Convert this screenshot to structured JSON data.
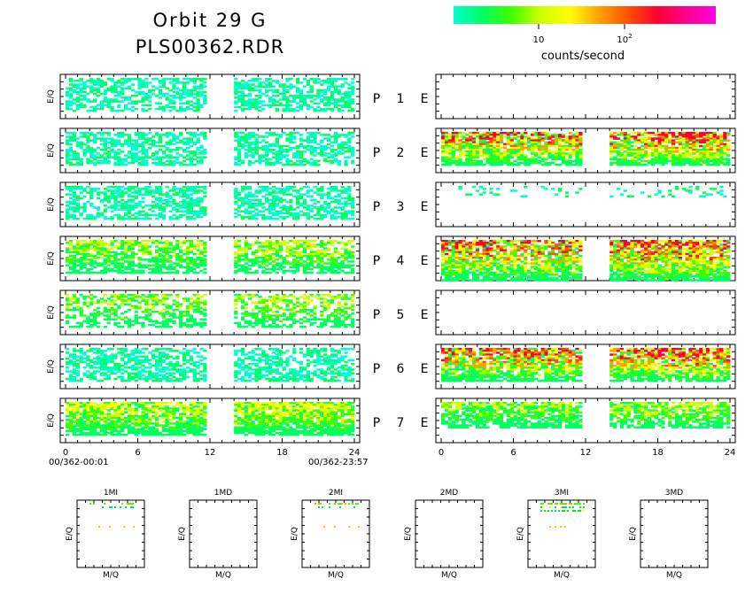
{
  "header": {
    "title": "Orbit 29 G",
    "file": "PLS00362.RDR"
  },
  "colorbar": {
    "colors": [
      "#00ffd0",
      "#00ff60",
      "#40ff00",
      "#d0ff00",
      "#ffff00",
      "#ffa000",
      "#ff5000",
      "#ff0030",
      "#ff0090",
      "#ff00e0"
    ],
    "tick_10": "10",
    "tick_100_base": "10",
    "tick_100_exp": "2",
    "label": "counts/second"
  },
  "axis": {
    "ylabel": "E/Q",
    "xlabel_small": "M/Q",
    "xticks": [
      "0",
      "6",
      "12",
      "18",
      "24"
    ],
    "start_time": "00/362-00:01",
    "end_time": "00/362-23:57"
  },
  "rows": [
    {
      "p": "P",
      "n": "1",
      "e": "E"
    },
    {
      "p": "P",
      "n": "2",
      "e": "E"
    },
    {
      "p": "P",
      "n": "3",
      "e": "E"
    },
    {
      "p": "P",
      "n": "4",
      "e": "E"
    },
    {
      "p": "P",
      "n": "5",
      "e": "E"
    },
    {
      "p": "P",
      "n": "6",
      "e": "E"
    },
    {
      "p": "P",
      "n": "7",
      "e": "E"
    }
  ],
  "small_titles": [
    "1MI",
    "1MD",
    "2MI",
    "2MD",
    "3MI",
    "3MD"
  ],
  "chart_data": {
    "type": "heatmap",
    "x_unit": "hours",
    "xlim": [
      0,
      24
    ],
    "data_gap_hours": [
      11.5,
      14
    ],
    "cmap_levels": [
      "#00ffd0",
      "#00ff60",
      "#40ff00",
      "#d0ff00",
      "#ffff00",
      "#ffa000",
      "#ff5000",
      "#ff0030"
    ],
    "left_panels": [
      {
        "density": 0.55,
        "rows": 18,
        "level": [
          1,
          2
        ]
      },
      {
        "density": 0.55,
        "rows": 18,
        "level": [
          1,
          2
        ]
      },
      {
        "density": 0.55,
        "rows": 18,
        "level": [
          1,
          2
        ]
      },
      {
        "density": 0.65,
        "rows": 18,
        "level": [
          1,
          3
        ]
      },
      {
        "density": 0.5,
        "rows": 18,
        "level": [
          1,
          3
        ]
      },
      {
        "density": 0.55,
        "rows": 18,
        "level": [
          1,
          2
        ]
      },
      {
        "density": 0.8,
        "rows": 18,
        "level": [
          1,
          4
        ]
      }
    ],
    "right_panels": [
      {
        "density": 0,
        "rows": 0,
        "level": [
          0,
          0
        ]
      },
      {
        "density": 0.8,
        "rows": 18,
        "level": [
          1,
          7
        ]
      },
      {
        "density": 0.25,
        "rows": 6,
        "level": [
          1,
          1
        ]
      },
      {
        "density": 0.8,
        "rows": 22,
        "level": [
          1,
          7
        ]
      },
      {
        "density": 0,
        "rows": 0,
        "level": [
          0,
          0
        ]
      },
      {
        "density": 0.8,
        "rows": 18,
        "level": [
          1,
          7
        ]
      },
      {
        "density": 0.7,
        "rows": 14,
        "level": [
          1,
          3
        ]
      }
    ],
    "small_panels": [
      {
        "name": "1MI",
        "points": "sparse"
      },
      {
        "name": "1MD",
        "points": "none"
      },
      {
        "name": "2MI",
        "points": "sparse"
      },
      {
        "name": "2MD",
        "points": "none"
      },
      {
        "name": "3MI",
        "points": "dense"
      },
      {
        "name": "3MD",
        "points": "none"
      }
    ]
  }
}
